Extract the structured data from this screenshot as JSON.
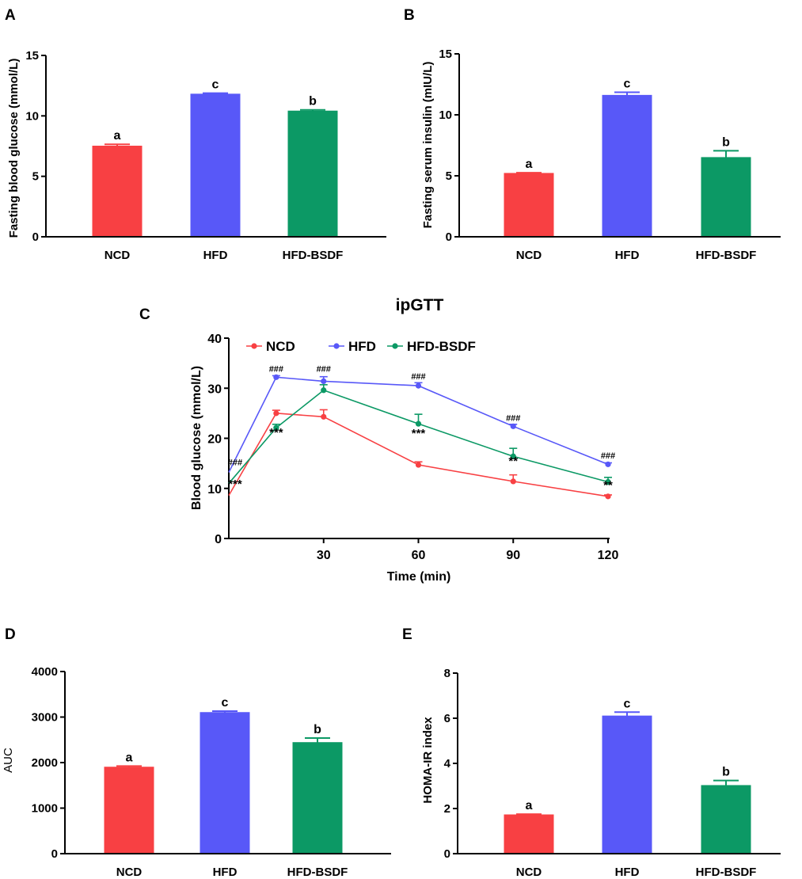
{
  "colors": {
    "NCD": "#f84043",
    "HFD": "#5858f8",
    "HFD-BSDF": "#0c9965",
    "axis": "#000000"
  },
  "chart_data": [
    {
      "panel": "A",
      "type": "bar",
      "ylabel": "Fasting blood glucose (mmol/L)",
      "categories": [
        "NCD",
        "HFD",
        "HFD-BSDF"
      ],
      "values": [
        7.5,
        11.8,
        10.4
      ],
      "errors": [
        0.15,
        0.08,
        0.1
      ],
      "sig_letters": [
        "a",
        "c",
        "b"
      ],
      "ylim": [
        0,
        15
      ],
      "yticks": [
        0,
        5,
        10,
        15
      ],
      "ytick_labels": [
        "0",
        "5",
        "10",
        "15"
      ]
    },
    {
      "panel": "B",
      "type": "bar",
      "ylabel": "Fasting serum insulin (mIU/L)",
      "categories": [
        "NCD",
        "HFD",
        "HFD-BSDF"
      ],
      "values": [
        5.2,
        11.6,
        6.5
      ],
      "errors": [
        0.05,
        0.25,
        0.55
      ],
      "sig_letters": [
        "a",
        "c",
        "b"
      ],
      "ylim": [
        0,
        15
      ],
      "yticks": [
        0,
        5,
        10,
        15
      ],
      "ytick_labels": [
        "0",
        "5",
        "10",
        "15"
      ]
    },
    {
      "panel": "C",
      "type": "line",
      "title": "ipGTT",
      "xlabel": "Time (min)",
      "ylabel": "Blood glucose (mmol/L)",
      "xlim": [
        0,
        120
      ],
      "ylim": [
        0,
        40
      ],
      "xticks": [
        30,
        60,
        90,
        120
      ],
      "xtick_labels": [
        "30",
        "60",
        "90",
        "120"
      ],
      "yticks": [
        0,
        10,
        20,
        30,
        40
      ],
      "ytick_labels": [
        "0",
        "10",
        "20",
        "30",
        "40"
      ],
      "x": [
        0,
        15,
        30,
        60,
        90,
        120
      ],
      "series": [
        {
          "name": "NCD",
          "values": [
            8.6,
            25.0,
            24.3,
            14.7,
            11.4,
            8.4
          ],
          "errors": [
            0.3,
            0.6,
            1.4,
            0.6,
            1.3,
            0.3
          ]
        },
        {
          "name": "HFD",
          "values": [
            13.2,
            32.2,
            31.4,
            30.5,
            22.4,
            14.8
          ],
          "errors": [
            0.3,
            0.3,
            0.9,
            0.6,
            0.4,
            0.3
          ]
        },
        {
          "name": "HFD-BSDF",
          "values": [
            11.0,
            22.1,
            29.6,
            22.9,
            16.4,
            11.3
          ],
          "errors": [
            0.3,
            0.7,
            1.1,
            1.9,
            1.6,
            0.9
          ]
        }
      ],
      "annotations": [
        {
          "text": "###",
          "x": 2,
          "y": 14.6
        },
        {
          "text": "***",
          "x": 2,
          "y": 10.1
        },
        {
          "text": "###",
          "x": 15,
          "y": 33.3
        },
        {
          "text": "***",
          "x": 15,
          "y": 20.4
        },
        {
          "text": "###",
          "x": 30,
          "y": 33.3
        },
        {
          "text": "###",
          "x": 60,
          "y": 31.8
        },
        {
          "text": "***",
          "x": 60,
          "y": 20.2
        },
        {
          "text": "###",
          "x": 90,
          "y": 23.5
        },
        {
          "text": "**",
          "x": 90,
          "y": 14.7
        },
        {
          "text": "###",
          "x": 120,
          "y": 16.0
        },
        {
          "text": "**",
          "x": 120,
          "y": 9.9
        }
      ]
    },
    {
      "panel": "D",
      "type": "bar",
      "ylabel": "AUC",
      "categories": [
        "NCD",
        "HFD",
        "HFD-BSDF"
      ],
      "values": [
        1900,
        3100,
        2440
      ],
      "errors": [
        25,
        30,
        100
      ],
      "sig_letters": [
        "a",
        "c",
        "b"
      ],
      "ylim": [
        0,
        4000
      ],
      "yticks": [
        0,
        1000,
        2000,
        3000,
        4000
      ],
      "ytick_labels": [
        "0",
        "1000",
        "2000",
        "3000",
        "4000"
      ]
    },
    {
      "panel": "E",
      "type": "bar",
      "ylabel": "HOMA-IR index",
      "categories": [
        "NCD",
        "HFD",
        "HFD-BSDF"
      ],
      "values": [
        1.72,
        6.1,
        3.02
      ],
      "errors": [
        0.03,
        0.17,
        0.22
      ],
      "sig_letters": [
        "a",
        "c",
        "b"
      ],
      "ylim": [
        0,
        8
      ],
      "yticks": [
        0,
        2,
        4,
        6,
        8
      ],
      "ytick_labels": [
        "0",
        "2",
        "4",
        "6",
        "8"
      ]
    }
  ]
}
